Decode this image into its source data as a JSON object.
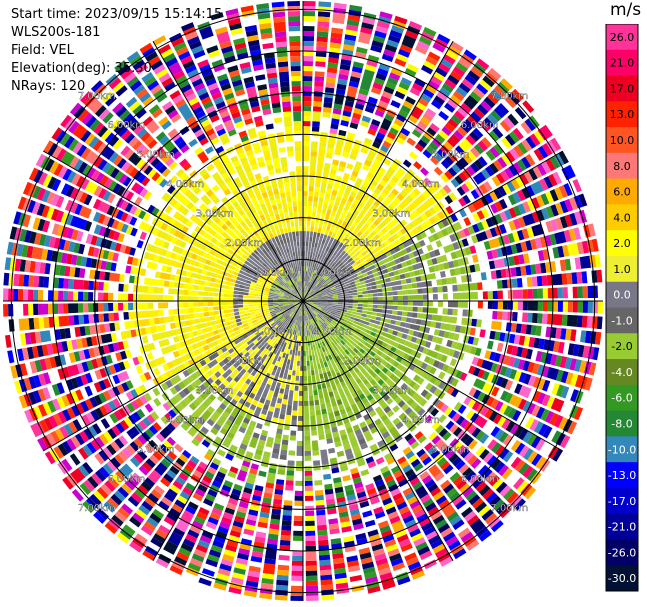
{
  "header": {
    "start_time": "Start time: 2023/09/15 15:14:15",
    "instrument": "WLS200s-181",
    "field": "Field: VEL",
    "elevation": "Elevation(deg): 35.30",
    "nrays": "NRays: 120"
  },
  "colorbar": {
    "unit": "m/s",
    "ticks": [
      "26.0",
      "21.0",
      "17.0",
      "13.0",
      "10.0",
      "8.0",
      "6.0",
      "4.0",
      "2.0",
      "1.0",
      "0.0",
      "-1.0",
      "-2.0",
      "-4.0",
      "-6.0",
      "-8.0",
      "-10.0",
      "-13.0",
      "-17.0",
      "-21.0",
      "-26.0",
      "-30.0"
    ],
    "colors": [
      "#ff3399",
      "#ff0066",
      "#ee0022",
      "#ff2200",
      "#ff5522",
      "#ff7777",
      "#ffaa00",
      "#ffcc00",
      "#ffff00",
      "#eeee33",
      "#777788",
      "#666666",
      "#99cc33",
      "#668822",
      "#339922",
      "#228833",
      "#3388bb",
      "#0000ff",
      "#0000cc",
      "#000099",
      "#000066",
      "#001133"
    ]
  },
  "chart_data": {
    "type": "heatmap",
    "subtype": "ppi-polar",
    "field": "VEL",
    "units": "m/s",
    "elevation_deg": 35.3,
    "nrays": 120,
    "range_ring_labels": [
      "1.00km",
      "2.00km",
      "3.00km",
      "4.00km",
      "5.00km",
      "6.00km",
      "7.00km"
    ],
    "range_rings_km": [
      1,
      2,
      3,
      4,
      5,
      6,
      7
    ],
    "max_range_km": 7.2,
    "spokes_deg": [
      0,
      30,
      60,
      90,
      120,
      150,
      180,
      210,
      240,
      270,
      300,
      330
    ],
    "pattern": {
      "center_gray_km": 0.8,
      "inner_yellow_and_green_km": 3.0,
      "transition_km": 4.0,
      "noise_beyond_km": 4.5
    }
  }
}
